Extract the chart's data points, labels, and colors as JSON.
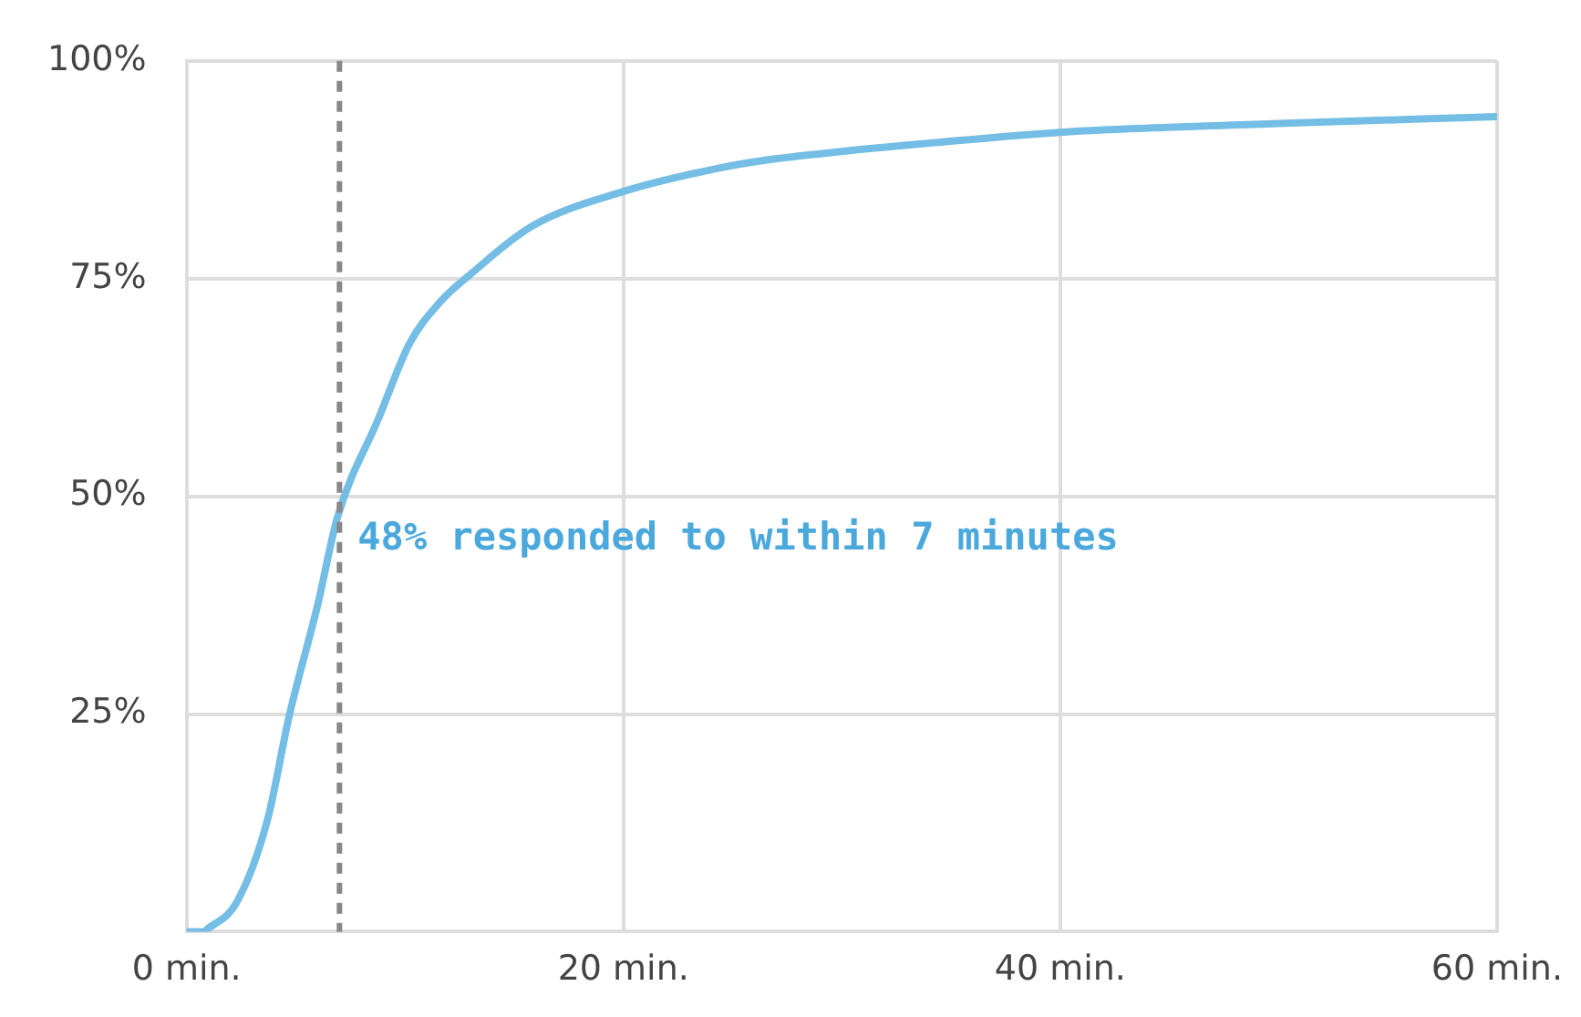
{
  "chart_data": {
    "type": "line",
    "x": [
      0,
      0.8,
      0.9,
      2.3,
      3.7,
      4.7,
      6,
      6.9,
      8.8,
      10.2,
      11.6,
      13,
      15.8,
      20,
      24.2,
      26.5,
      30,
      33.8,
      40,
      50,
      60
    ],
    "series": [
      {
        "color": "#74bde4",
        "values": [
          0,
          0,
          0.2,
          3.4,
          12.8,
          24.8,
          37.5,
          47.5,
          59,
          67.5,
          72.3,
          75.5,
          81,
          85,
          87.6,
          88.6,
          89.6,
          90.5,
          91.8,
          92.8,
          93.6
        ]
      }
    ],
    "xlim": [
      0,
      60
    ],
    "xticks": [
      {
        "value": 0,
        "label": "0 min."
      },
      {
        "value": 20,
        "label": "20 min."
      },
      {
        "value": 40,
        "label": "40 min."
      },
      {
        "value": 60,
        "label": "60 min."
      }
    ],
    "ylim": [
      0,
      100
    ],
    "yticks": [
      {
        "value": 0,
        "label": null
      },
      {
        "value": 25,
        "label": "25%"
      },
      {
        "value": 50,
        "label": "50%"
      },
      {
        "value": 75,
        "label": "75%"
      },
      {
        "value": 100,
        "label": "100%"
      }
    ],
    "grid": true,
    "marker": "none",
    "line_style": "solid",
    "legend": false,
    "ref_lines": [
      {
        "axis": "x",
        "value": 7,
        "color": "#888888",
        "line_style": "dashed"
      }
    ],
    "annotations": [
      {
        "text": "48% responded to within 7 minutes",
        "x": 7,
        "y": 45
      }
    ]
  }
}
